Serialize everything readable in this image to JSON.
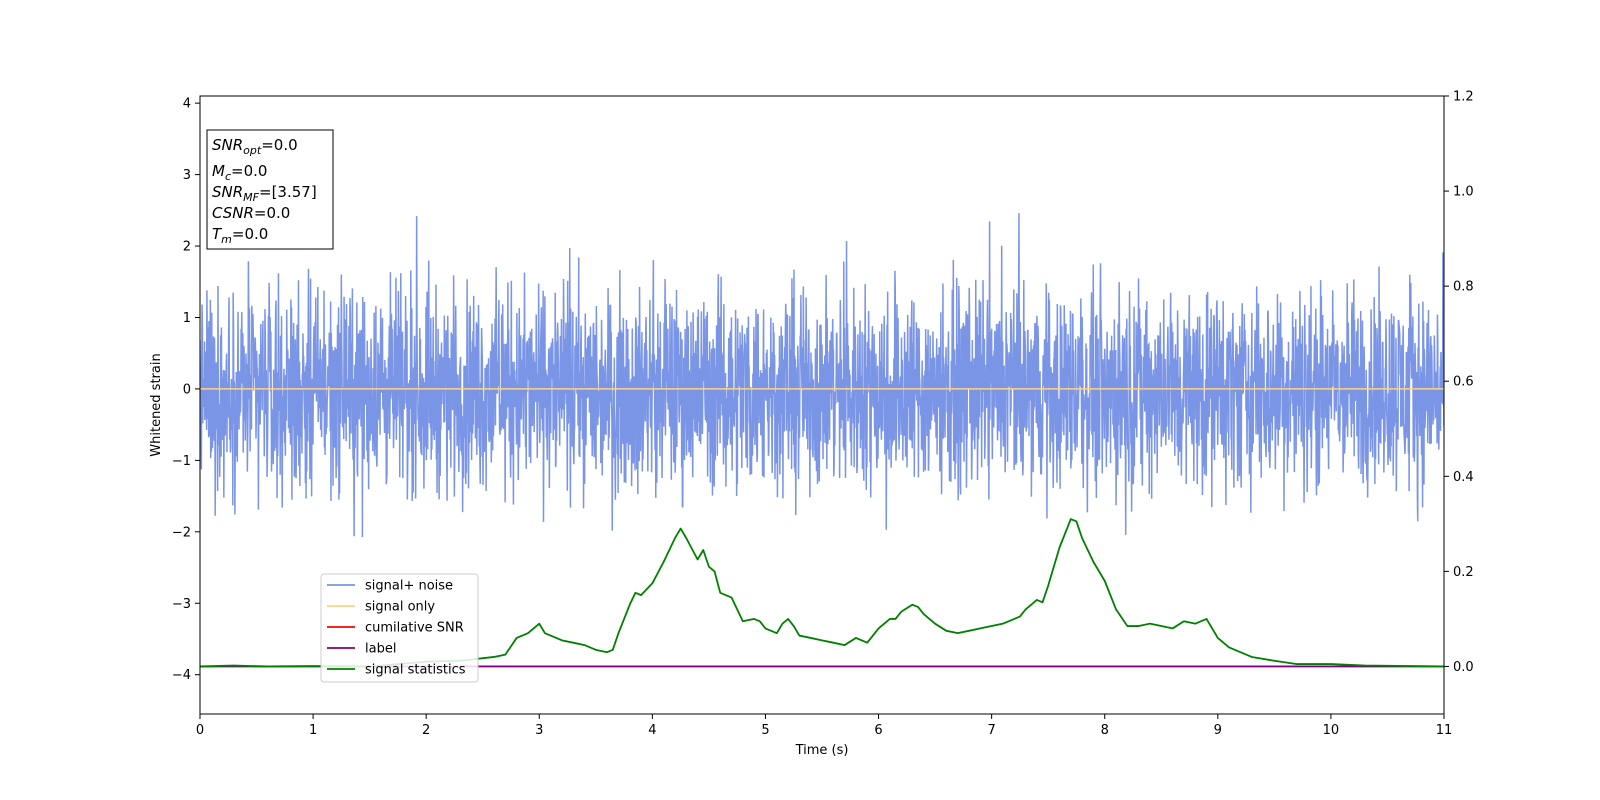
{
  "chart_data": {
    "type": "line",
    "xlabel": "Time (s)",
    "ylabel": "Whitened strain",
    "xlim": [
      0,
      11
    ],
    "ylim_left": [
      -4.55,
      4.1
    ],
    "ylim_right": [
      -0.1,
      1.2
    ],
    "x_ticks": [
      0,
      1,
      2,
      3,
      4,
      5,
      6,
      7,
      8,
      9,
      10,
      11
    ],
    "y_ticks_left": [
      -4,
      -3,
      -2,
      -1,
      0,
      1,
      2,
      3,
      4
    ],
    "y_ticks_right": [
      0.0,
      0.2,
      0.4,
      0.6,
      0.8,
      1.0,
      1.2
    ],
    "legend": {
      "placement": "lower-left",
      "entries": [
        {
          "label": "signal+ noise",
          "color": "#7a95e6"
        },
        {
          "label": "signal only",
          "color": "#ffd27f"
        },
        {
          "label": "cumilative SNR",
          "color": "#ff0000"
        },
        {
          "label": "label",
          "color": "#800080"
        },
        {
          "label": "signal statistics",
          "color": "#008000"
        }
      ]
    },
    "annotations": [
      {
        "main": "SNR",
        "sub": "opt",
        "value": "=0.0"
      },
      {
        "main": "M",
        "sub": "c",
        "value": "=0.0"
      },
      {
        "main": "SNR",
        "sub": "MF",
        "value": "=[3.57]"
      },
      {
        "main": "CSNR",
        "sub": "",
        "value": "=0.0"
      },
      {
        "main": "T",
        "sub": "m",
        "value": "=0.0"
      }
    ],
    "series": [
      {
        "name": "signal+ noise",
        "axis": "left",
        "color": "#7a95e6",
        "description_values": {
          "envelope_typical": [
            -1.4,
            1.4
          ],
          "max": 2.55,
          "min": -2.35
        }
      },
      {
        "name": "signal only",
        "axis": "left",
        "color": "#ffd27f",
        "x": [
          0,
          11
        ],
        "y": [
          0,
          0
        ]
      },
      {
        "name": "label",
        "axis": "right",
        "color": "#800080",
        "x": [
          0,
          11
        ],
        "y": [
          0,
          0
        ]
      },
      {
        "name": "signal statistics",
        "axis": "right",
        "color": "#008000",
        "x": [
          0,
          0.3,
          0.6,
          1.0,
          1.5,
          2.0,
          2.3,
          2.6,
          2.7,
          2.8,
          2.9,
          3.0,
          3.05,
          3.1,
          3.2,
          3.3,
          3.4,
          3.5,
          3.6,
          3.65,
          3.7,
          3.8,
          3.85,
          3.9,
          4.0,
          4.1,
          4.2,
          4.25,
          4.3,
          4.4,
          4.45,
          4.5,
          4.55,
          4.6,
          4.7,
          4.75,
          4.8,
          4.9,
          4.95,
          5.0,
          5.05,
          5.1,
          5.15,
          5.2,
          5.25,
          5.3,
          5.4,
          5.5,
          5.6,
          5.7,
          5.8,
          5.9,
          6.0,
          6.1,
          6.15,
          6.2,
          6.3,
          6.35,
          6.4,
          6.5,
          6.6,
          6.7,
          6.8,
          6.9,
          7.0,
          7.1,
          7.2,
          7.25,
          7.3,
          7.4,
          7.45,
          7.5,
          7.6,
          7.7,
          7.75,
          7.8,
          7.9,
          8.0,
          8.1,
          8.2,
          8.3,
          8.4,
          8.5,
          8.6,
          8.7,
          8.8,
          8.9,
          9.0,
          9.1,
          9.2,
          9.3,
          9.5,
          9.7,
          10.0,
          10.3,
          10.7,
          11.0
        ],
        "y": [
          0.0,
          0.002,
          0.0,
          0.001,
          0.0,
          0.01,
          0.012,
          0.02,
          0.025,
          0.06,
          0.07,
          0.09,
          0.07,
          0.065,
          0.055,
          0.05,
          0.045,
          0.035,
          0.03,
          0.035,
          0.07,
          0.13,
          0.155,
          0.15,
          0.175,
          0.22,
          0.27,
          0.29,
          0.27,
          0.225,
          0.245,
          0.21,
          0.2,
          0.155,
          0.145,
          0.12,
          0.095,
          0.1,
          0.095,
          0.08,
          0.075,
          0.07,
          0.09,
          0.1,
          0.085,
          0.065,
          0.06,
          0.055,
          0.05,
          0.045,
          0.06,
          0.05,
          0.08,
          0.1,
          0.1,
          0.115,
          0.13,
          0.125,
          0.11,
          0.09,
          0.075,
          0.07,
          0.075,
          0.08,
          0.085,
          0.09,
          0.1,
          0.105,
          0.12,
          0.14,
          0.135,
          0.17,
          0.25,
          0.31,
          0.305,
          0.27,
          0.22,
          0.18,
          0.12,
          0.085,
          0.085,
          0.09,
          0.085,
          0.08,
          0.095,
          0.09,
          0.1,
          0.06,
          0.04,
          0.03,
          0.02,
          0.012,
          0.005,
          0.005,
          0.002,
          0.001,
          0.0
        ]
      }
    ]
  }
}
